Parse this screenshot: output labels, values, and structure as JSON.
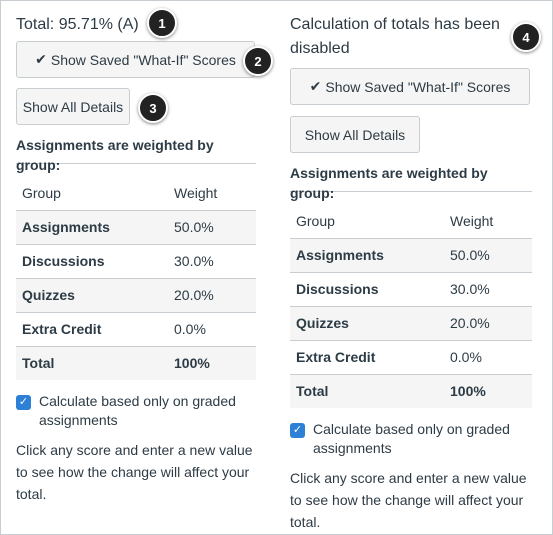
{
  "left": {
    "total": "Total: 95.71% (A)",
    "whatif_label": "Show Saved \"What-If\" Scores",
    "details_label": "Show All Details",
    "weighted_heading": "Assignments are weighted by group:",
    "headers": {
      "group": "Group",
      "weight": "Weight"
    },
    "rows": [
      {
        "group": "Assignments",
        "weight": "50.0%"
      },
      {
        "group": "Discussions",
        "weight": "30.0%"
      },
      {
        "group": "Quizzes",
        "weight": "20.0%"
      },
      {
        "group": "Extra Credit",
        "weight": "0.0%"
      },
      {
        "group": "Total",
        "weight": "100%"
      }
    ],
    "calc_label": "Calculate based only on graded assignments",
    "help_text": "Click any score and enter a new value to see how the change will affect your total."
  },
  "right": {
    "disabled_msg": "Calculation of totals has been disabled",
    "whatif_label": "Show Saved \"What-If\" Scores",
    "details_label": "Show All Details",
    "weighted_heading": "Assignments are weighted by group:",
    "headers": {
      "group": "Group",
      "weight": "Weight"
    },
    "rows": [
      {
        "group": "Assignments",
        "weight": "50.0%"
      },
      {
        "group": "Discussions",
        "weight": "30.0%"
      },
      {
        "group": "Quizzes",
        "weight": "20.0%"
      },
      {
        "group": "Extra Credit",
        "weight": "0.0%"
      },
      {
        "group": "Total",
        "weight": "100%"
      }
    ],
    "calc_label": "Calculate based only on graded assignments",
    "help_text": "Click any score and enter a new value to see how the change will affect your total."
  },
  "badges": [
    "1",
    "2",
    "3",
    "4"
  ],
  "checkbox_checked": true,
  "colors": {
    "accent": "#2e7fd6",
    "badge": "#222222"
  },
  "icons": {
    "whatif": "check-icon",
    "checkbox": "checkbox-checked-icon"
  }
}
